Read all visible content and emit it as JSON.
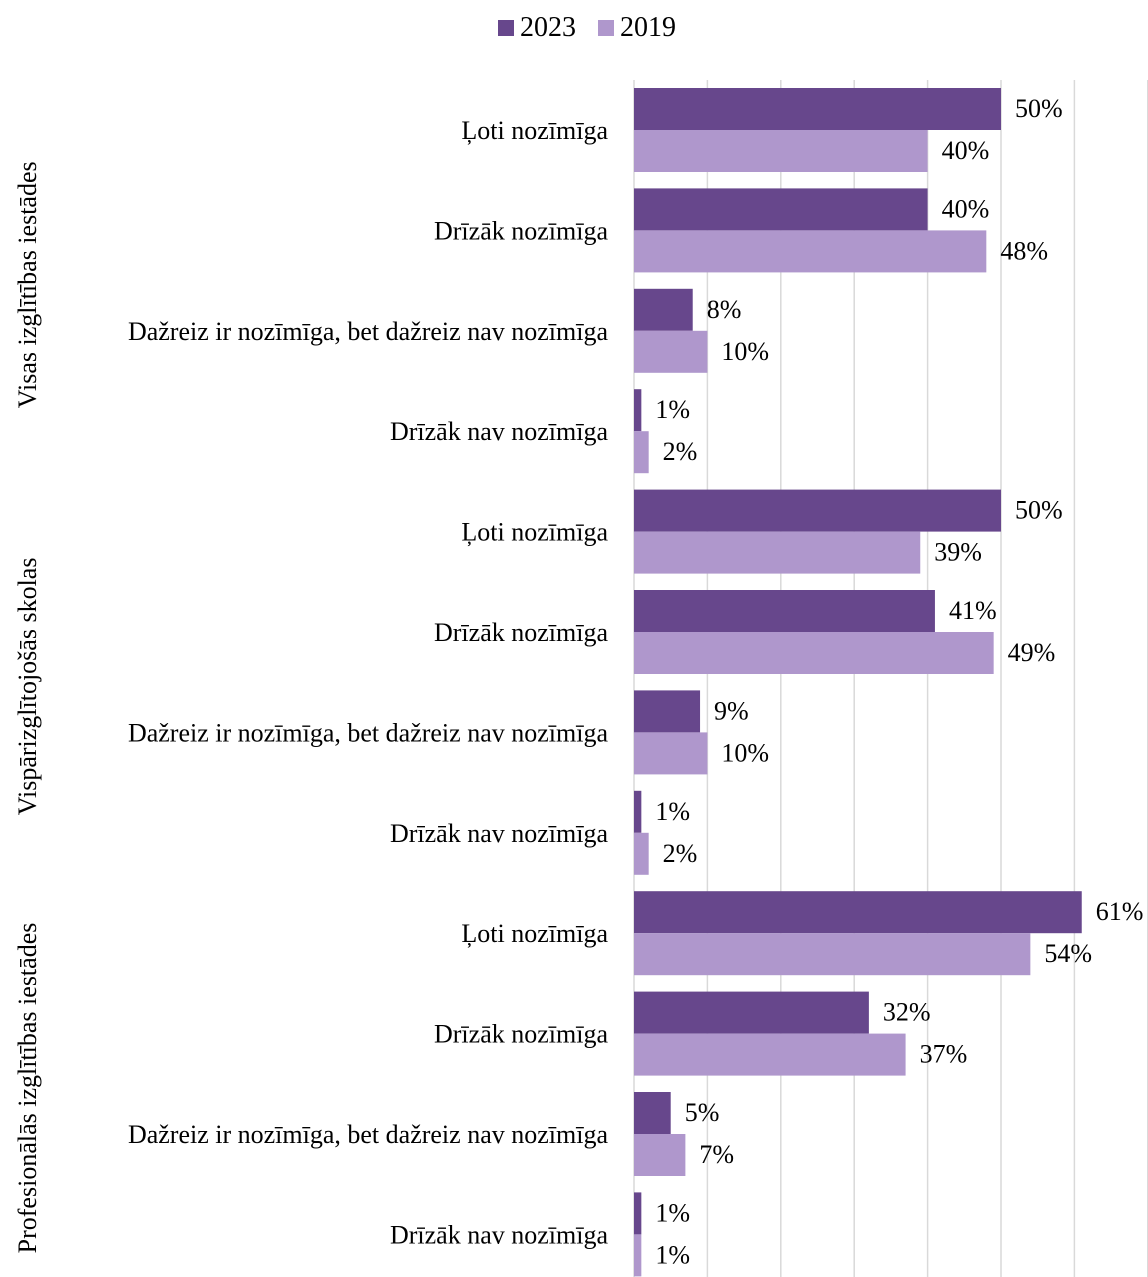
{
  "chart_data": {
    "type": "bar",
    "orientation": "horizontal",
    "legend_position": "top",
    "grid": true,
    "xlim": [
      0,
      70
    ],
    "value_format": "percent",
    "colors": {
      "2023": "#67478c",
      "2019": "#af97cc",
      "grid": "#d9d9d9"
    },
    "series": [
      {
        "name": "2023"
      },
      {
        "name": "2019"
      }
    ],
    "groups": [
      {
        "label": "Visas izglītības iestādes",
        "categories": [
          {
            "label": "Ļoti nozīmīga",
            "values": [
              50,
              40
            ]
          },
          {
            "label": "Drīzāk nozīmīga",
            "values": [
              40,
              48
            ]
          },
          {
            "label": "Dažreiz ir nozīmīga, bet dažreiz nav nozīmīga",
            "values": [
              8,
              10
            ]
          },
          {
            "label": "Drīzāk nav nozīmīga",
            "values": [
              1,
              2
            ]
          }
        ]
      },
      {
        "label": "Vispārizglītojošās skolas",
        "categories": [
          {
            "label": "Ļoti nozīmīga",
            "values": [
              50,
              39
            ]
          },
          {
            "label": "Drīzāk nozīmīga",
            "values": [
              41,
              49
            ]
          },
          {
            "label": "Dažreiz ir nozīmīga, bet dažreiz nav nozīmīga",
            "values": [
              9,
              10
            ]
          },
          {
            "label": "Drīzāk nav nozīmīga",
            "values": [
              1,
              2
            ]
          }
        ]
      },
      {
        "label": "Profesionālās izglītības iestādes",
        "categories": [
          {
            "label": "Ļoti nozīmīga",
            "values": [
              61,
              54
            ]
          },
          {
            "label": "Drīzāk nozīmīga",
            "values": [
              32,
              37
            ]
          },
          {
            "label": "Dažreiz ir nozīmīga, bet dažreiz nav nozīmīga",
            "values": [
              5,
              7
            ]
          },
          {
            "label": "Drīzāk nav nozīmīga",
            "values": [
              1,
              1
            ]
          }
        ]
      }
    ]
  }
}
